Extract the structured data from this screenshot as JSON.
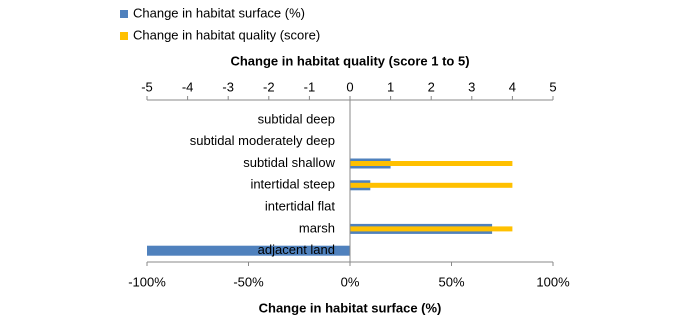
{
  "chart_data": {
    "type": "bar",
    "orientation": "horizontal",
    "categories": [
      "subtidal deep",
      "subtidal moderately deep",
      "subtidal shallow",
      "intertidal steep",
      "intertidal flat",
      "marsh",
      "adjacent land"
    ],
    "series": [
      {
        "name": "Change in habitat surface (%)",
        "color": "#4f81bd",
        "axis": "x",
        "values": [
          0,
          0,
          20,
          10,
          0,
          70,
          -100
        ]
      },
      {
        "name": "Change in habitat quality (score)",
        "color": "#ffc000",
        "axis": "x2",
        "values": [
          0,
          0,
          4,
          4,
          0,
          4,
          0
        ]
      }
    ],
    "x_label": "Change in habitat surface (%)",
    "x2_label": "Change in habitat quality (score 1 to 5)",
    "xlim": [
      -100,
      100
    ],
    "xticks": [
      {
        "value": -100,
        "label": "-100%"
      },
      {
        "value": -50,
        "label": "-50%"
      },
      {
        "value": 0,
        "label": "0%"
      },
      {
        "value": 50,
        "label": "50%"
      },
      {
        "value": 100,
        "label": "100%"
      }
    ],
    "x2lim": [
      -5,
      5
    ],
    "x2ticks": [
      -5,
      -4,
      -3,
      -2,
      -1,
      0,
      1,
      2,
      3,
      4,
      5
    ],
    "legend": "top-left"
  }
}
